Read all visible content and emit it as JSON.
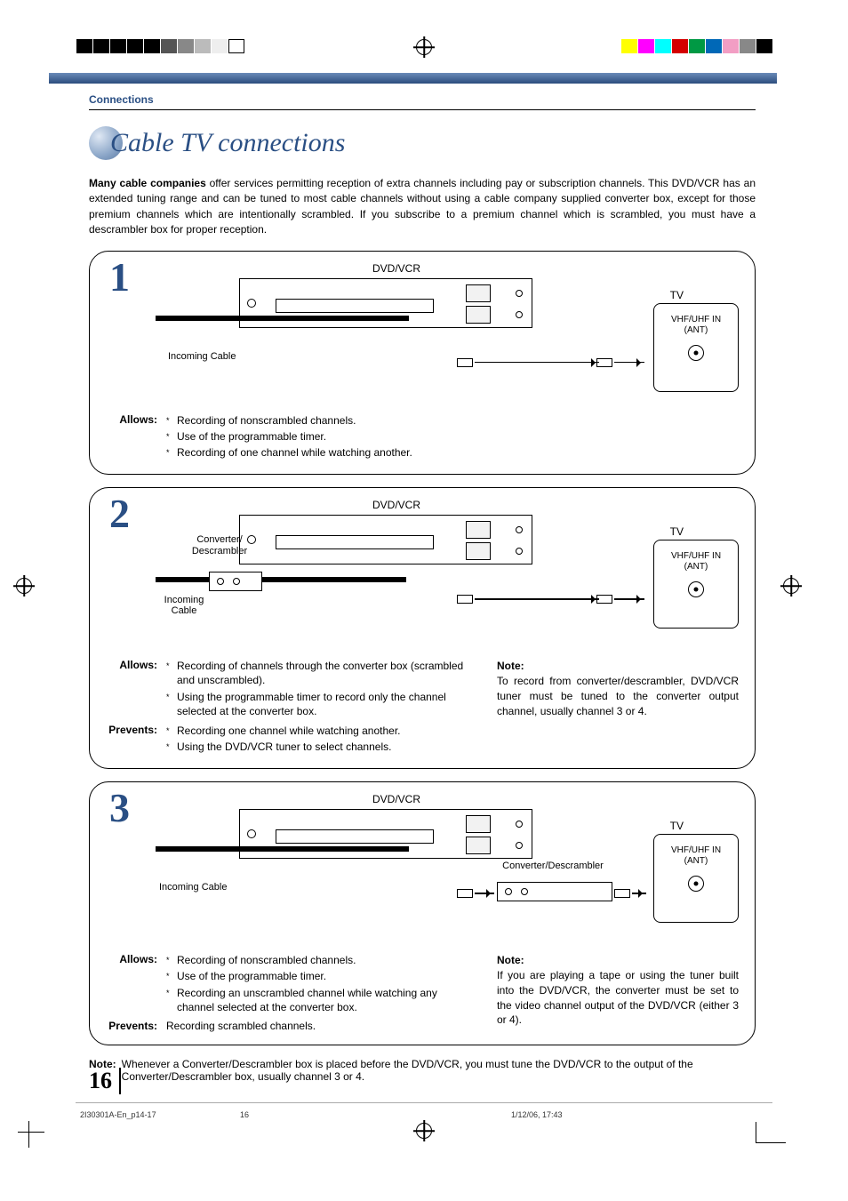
{
  "registration": {
    "left_swatches": [
      "#000000",
      "#000000",
      "#000000",
      "#000000",
      "#000000",
      "#555555",
      "#888888",
      "#bbbbbb",
      "#eeeeee",
      "#ffffff"
    ],
    "right_swatches": [
      "#ffff00",
      "#ff00ff",
      "#00ffff",
      "#d40000",
      "#009944",
      "#0068b7",
      "#f29ec4",
      "#888888",
      "#000000"
    ]
  },
  "header": {
    "section": "Connections",
    "title": "Cable TV connections"
  },
  "intro": {
    "bold": "Many cable companies",
    "text": " offer services permitting reception of extra channels including pay or subscription channels. This DVD/VCR has an extended tuning range and can be tuned to most cable channels without using a cable company supplied converter box, except for those premium channels which are intentionally scrambled. If you subscribe to a premium channel which is scrambled, you must have a descrambler box for proper reception."
  },
  "labels": {
    "dvdvcr": "DVD/VCR",
    "tv": "TV",
    "ant": "VHF/UHF IN (ANT)",
    "incoming": "Incoming Cable",
    "incoming_short": "Incoming Cable",
    "converter": "Converter/ Descrambler",
    "converter_inline": "Converter/Descrambler",
    "allows": "Allows:",
    "prevents": "Prevents:",
    "note": "Note:"
  },
  "card1": {
    "num": "1",
    "allows": [
      "Recording of nonscrambled channels.",
      "Use of the programmable timer.",
      "Recording of one channel while watching another."
    ]
  },
  "card2": {
    "num": "2",
    "allows": [
      "Recording of channels through the converter box (scrambled and unscrambled).",
      "Using the programmable timer to record only the channel selected at the converter box."
    ],
    "prevents": [
      "Recording one channel while watching another.",
      "Using the DVD/VCR tuner to select channels."
    ],
    "note": "To record from converter/descrambler, DVD/VCR tuner must be tuned to the converter output channel, usually channel 3 or 4."
  },
  "card3": {
    "num": "3",
    "allows": [
      "Recording of nonscrambled channels.",
      "Use of the programmable timer.",
      "Recording an unscrambled channel while watching any channel selected at the converter box."
    ],
    "prevents_text": "Recording scrambled channels.",
    "note": "If you are playing a tape or using the tuner built into the DVD/VCR, the converter must be set to the video channel output of the DVD/VCR (either 3 or 4)."
  },
  "foot_note": "Whenever a Converter/Descrambler box is placed before the DVD/VCR, you must tune the DVD/VCR to the output of the Converter/Descrambler box, usually channel 3 or 4.",
  "page_number": "16",
  "footer": {
    "file": "2I30301A-En_p14-17",
    "page": "16",
    "date": "1/12/06, 17:43"
  },
  "colors": {
    "blue": "#2a4f84"
  }
}
